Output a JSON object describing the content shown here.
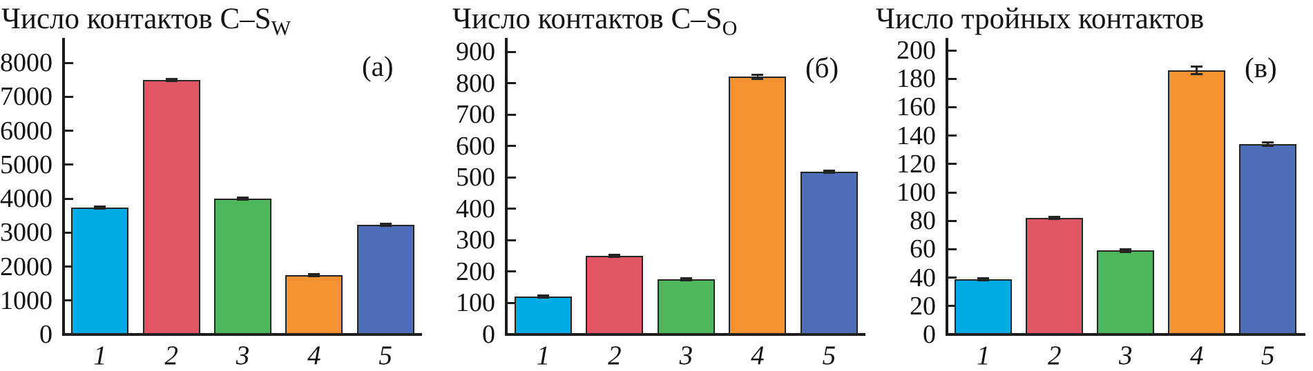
{
  "figure": {
    "background": "#ffffff",
    "bar_edge_color": "#242424",
    "axis_color": "#1c1c1c"
  },
  "bar_colors": [
    "#00ACE6",
    "#E25565",
    "#4EB75B",
    "#F79233",
    "#4E6FB7"
  ],
  "chart_data": [
    {
      "type": "bar",
      "panel_label": "(а)",
      "title": "Число контактов C–S_W",
      "title_main": "Число контактов C–S",
      "title_sub": "W",
      "categories": [
        "1",
        "2",
        "3",
        "4",
        "5"
      ],
      "values": [
        3730,
        7490,
        4000,
        1740,
        3230
      ],
      "errors": [
        40,
        30,
        40,
        25,
        25
      ],
      "xlabel": "",
      "ylabel": "",
      "ylim": [
        0,
        8000
      ],
      "ytick_step": 1000,
      "grid": false,
      "legend": false
    },
    {
      "type": "bar",
      "panel_label": "(б)",
      "title": "Число контактов C–S_O",
      "title_main": "Число контактов C–S",
      "title_sub": "O",
      "categories": [
        "1",
        "2",
        "3",
        "4",
        "5"
      ],
      "values": [
        120,
        250,
        175,
        820,
        517
      ],
      "errors": [
        5,
        5,
        4,
        10,
        6
      ],
      "xlabel": "",
      "ylabel": "",
      "ylim": [
        0,
        900
      ],
      "ytick_step": 100,
      "grid": false,
      "legend": false
    },
    {
      "type": "bar",
      "panel_label": "(в)",
      "title": "Число тройных контактов",
      "title_main": "Число тройных контактов",
      "title_sub": "",
      "categories": [
        "1",
        "2",
        "3",
        "4",
        "5"
      ],
      "values": [
        39,
        82,
        59,
        186,
        134
      ],
      "errors": [
        1.5,
        1.5,
        1.5,
        3.5,
        2
      ],
      "xlabel": "",
      "ylabel": "",
      "ylim": [
        0,
        200
      ],
      "ytick_step": 20,
      "grid": false,
      "legend": false
    }
  ]
}
